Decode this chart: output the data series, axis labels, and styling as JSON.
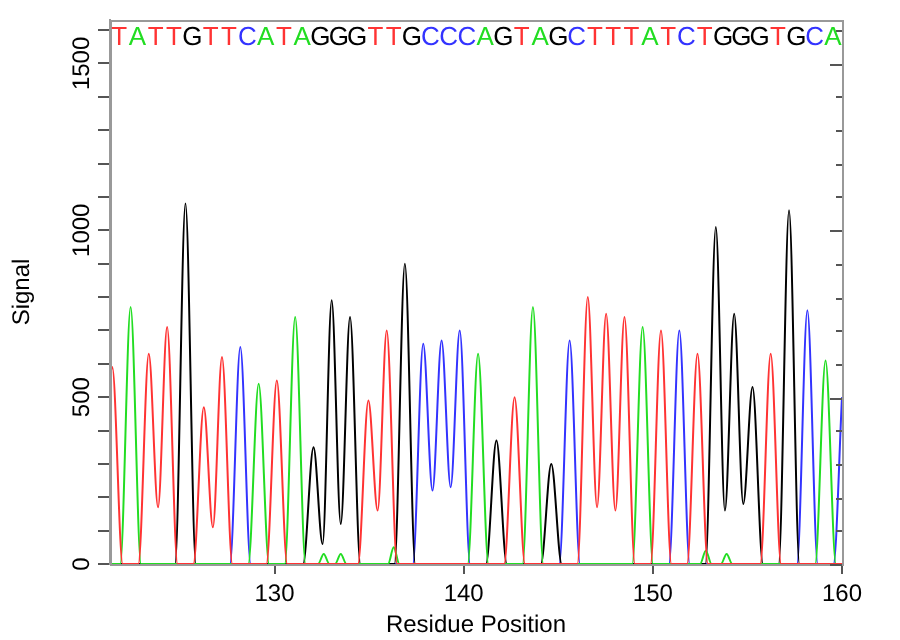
{
  "chart_data": {
    "type": "line",
    "xlabel": "Residue Position",
    "ylabel": "Signal",
    "xlim": [
      121.3,
      160.0
    ],
    "ylim": [
      0,
      1630
    ],
    "xticks": [
      130,
      140,
      150,
      160
    ],
    "yticks": [
      0,
      {
        "value": 100,
        "label": null
      },
      {
        "value": 200,
        "label": null
      },
      {
        "value": 300,
        "label": null
      },
      {
        "value": 400,
        "label": null
      },
      500,
      {
        "value": 600,
        "label": null
      },
      {
        "value": 700,
        "label": null
      },
      {
        "value": 800,
        "label": null
      },
      {
        "value": 900,
        "label": null
      },
      1000,
      {
        "value": 1100,
        "label": null
      },
      {
        "value": 1200,
        "label": null
      },
      {
        "value": 1300,
        "label": null
      },
      {
        "value": 1400,
        "label": null
      },
      1500,
      {
        "value": 1600,
        "label": null
      }
    ],
    "grid": false,
    "marker": "none",
    "line_style": "solid",
    "series": [
      {
        "color": "#ff3333",
        "x": [
          121.3,
          121.42,
          121.97,
          122.8,
          123.35,
          123.84,
          124.32,
          124.87,
          125.71,
          126.26,
          126.74,
          127.22,
          127.77,
          129.57,
          130.12,
          130.67,
          134.41,
          134.96,
          135.45,
          135.93,
          136.48,
          142.14,
          142.69,
          143.24,
          146.01,
          146.56,
          147.05,
          147.53,
          148.02,
          148.5,
          149.05,
          149.88,
          150.43,
          150.98,
          151.81,
          152.36,
          152.91,
          155.68,
          156.23,
          156.78,
          160.0
        ],
        "values": [
          570,
          590,
          0,
          0,
          630,
          170,
          710,
          0,
          0,
          470,
          110,
          620,
          0,
          0,
          550,
          0,
          0,
          490,
          160,
          700,
          0,
          0,
          500,
          0,
          0,
          800,
          170,
          750,
          160,
          740,
          0,
          0,
          700,
          0,
          0,
          630,
          0,
          0,
          630,
          0,
          0
        ]
      },
      {
        "color": "#22dd22",
        "x": [
          121.3,
          121.84,
          122.39,
          122.94,
          128.61,
          129.16,
          129.71,
          130.54,
          131.09,
          131.64,
          132.3,
          132.6,
          132.9,
          133.2,
          133.5,
          133.8,
          136.0,
          136.3,
          136.6,
          140.21,
          140.76,
          141.31,
          143.11,
          143.66,
          144.21,
          148.91,
          149.46,
          150.01,
          152.5,
          152.8,
          153.1,
          153.6,
          153.9,
          154.2,
          158.58,
          159.13,
          159.68,
          160.0
        ],
        "values": [
          0,
          0,
          770,
          0,
          0,
          540,
          0,
          0,
          740,
          0,
          0,
          30,
          0,
          0,
          30,
          0,
          0,
          50,
          0,
          0,
          630,
          0,
          0,
          770,
          0,
          0,
          710,
          0,
          0,
          40,
          0,
          0,
          30,
          0,
          0,
          610,
          0,
          0
        ]
      },
      {
        "color": "#000000",
        "x": [
          121.3,
          124.74,
          125.29,
          125.84,
          131.51,
          132.06,
          132.54,
          133.02,
          133.5,
          133.99,
          134.54,
          136.34,
          136.89,
          137.44,
          141.18,
          141.73,
          142.28,
          144.08,
          144.63,
          145.18,
          152.78,
          153.33,
          153.81,
          154.3,
          154.78,
          155.27,
          155.82,
          156.65,
          157.2,
          157.75,
          160.0
        ],
        "values": [
          0,
          0,
          1080,
          0,
          0,
          350,
          60,
          790,
          120,
          740,
          0,
          0,
          900,
          0,
          0,
          370,
          0,
          0,
          300,
          0,
          0,
          1010,
          160,
          750,
          180,
          530,
          0,
          0,
          1060,
          0,
          0
        ]
      },
      {
        "color": "#3333ff",
        "x": [
          121.3,
          127.64,
          128.19,
          128.74,
          137.31,
          137.86,
          138.35,
          138.83,
          139.31,
          139.79,
          140.34,
          145.05,
          145.6,
          146.15,
          150.85,
          151.4,
          151.95,
          157.62,
          158.17,
          158.72,
          159.55,
          160.0
        ],
        "values": [
          0,
          0,
          650,
          0,
          0,
          660,
          220,
          670,
          230,
          700,
          0,
          0,
          670,
          0,
          0,
          700,
          0,
          0,
          760,
          0,
          0,
          500
        ]
      }
    ],
    "annotations": [
      "T",
      "A",
      "T",
      "T",
      "G",
      "T",
      "T",
      "C",
      "A",
      "T",
      "A",
      "G",
      "G",
      "G",
      "T",
      "T",
      "G",
      "C",
      "C",
      "C",
      "A",
      "G",
      "T",
      "A",
      "G",
      "C",
      "T",
      "T",
      "T",
      "A",
      "T",
      "C",
      "T",
      "G",
      "G",
      "G",
      "T",
      "G",
      "C",
      "A"
    ]
  }
}
